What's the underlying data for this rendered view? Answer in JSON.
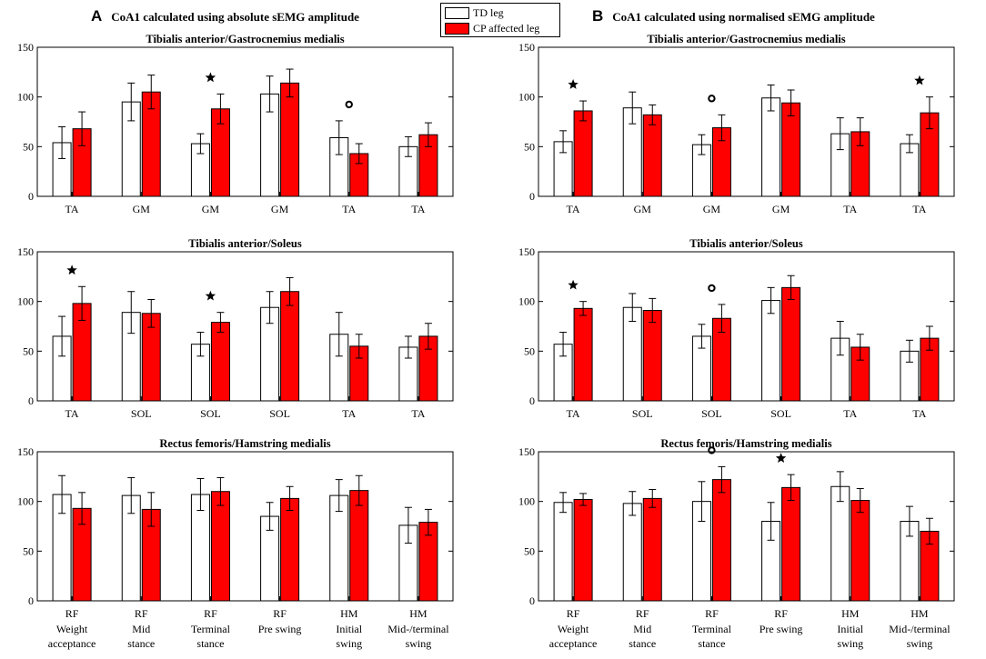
{
  "legend": {
    "td_label": "TD leg",
    "cp_label": "CP affected leg"
  },
  "colors": {
    "td_fill": "#ffffff",
    "cp_fill": "#ff0000",
    "stroke": "#000000"
  },
  "panels": [
    {
      "letter": "A",
      "title": "CoA1 calculated using absolute sEMG amplitude"
    },
    {
      "letter": "B",
      "title": "CoA1 calculated using normalised sEMG amplitude"
    }
  ],
  "phase_labels": [
    [
      "Weight",
      "acceptance"
    ],
    [
      "Mid",
      "stance"
    ],
    [
      "Terminal",
      "stance"
    ],
    [
      "Pre swing",
      ""
    ],
    [
      "Initial",
      "swing"
    ],
    [
      "Mid-/terminal",
      "swing"
    ]
  ],
  "chart_data": [
    {
      "panel": "A",
      "row": 0,
      "type": "bar",
      "title": "Tibialis anterior/Gastrocnemius medialis",
      "categories": [
        "TA",
        "GM",
        "GM",
        "GM",
        "TA",
        "TA"
      ],
      "ylim": [
        0,
        150
      ],
      "yticks": [
        0,
        50,
        100,
        150
      ],
      "series": [
        {
          "name": "TD leg",
          "values": [
            54,
            95,
            53,
            103,
            59,
            50
          ],
          "err": [
            16,
            19,
            10,
            18,
            17,
            10
          ]
        },
        {
          "name": "CP affected leg",
          "values": [
            68,
            105,
            88,
            114,
            43,
            62
          ],
          "err": [
            17,
            17,
            15,
            14,
            10,
            12
          ]
        }
      ],
      "markers": [
        {
          "index": 2,
          "symbol": "star"
        },
        {
          "index": 4,
          "symbol": "circle"
        }
      ]
    },
    {
      "panel": "A",
      "row": 1,
      "type": "bar",
      "title": "Tibialis anterior/Soleus",
      "categories": [
        "TA",
        "SOL",
        "SOL",
        "SOL",
        "TA",
        "TA"
      ],
      "ylim": [
        0,
        150
      ],
      "yticks": [
        0,
        50,
        100,
        150
      ],
      "series": [
        {
          "name": "TD leg",
          "values": [
            65,
            89,
            57,
            94,
            67,
            54
          ],
          "err": [
            20,
            21,
            12,
            16,
            22,
            11
          ]
        },
        {
          "name": "CP affected leg",
          "values": [
            98,
            88,
            79,
            110,
            55,
            65
          ],
          "err": [
            17,
            14,
            10,
            14,
            12,
            13
          ]
        }
      ],
      "markers": [
        {
          "index": 0,
          "symbol": "star"
        },
        {
          "index": 2,
          "symbol": "star"
        }
      ]
    },
    {
      "panel": "A",
      "row": 2,
      "type": "bar",
      "title": "Rectus femoris/Hamstring medialis",
      "categories": [
        "RF",
        "RF",
        "RF",
        "RF",
        "HM",
        "HM"
      ],
      "ylim": [
        0,
        150
      ],
      "yticks": [
        0,
        50,
        100,
        150
      ],
      "series": [
        {
          "name": "TD leg",
          "values": [
            107,
            106,
            107,
            85,
            106,
            76
          ],
          "err": [
            19,
            18,
            16,
            14,
            16,
            18
          ]
        },
        {
          "name": "CP affected leg",
          "values": [
            93,
            92,
            110,
            103,
            111,
            79
          ],
          "err": [
            16,
            17,
            14,
            12,
            15,
            13
          ]
        }
      ],
      "markers": []
    },
    {
      "panel": "B",
      "row": 0,
      "type": "bar",
      "title": "Tibialis anterior/Gastrocnemius medialis",
      "categories": [
        "TA",
        "GM",
        "GM",
        "GM",
        "TA",
        "TA"
      ],
      "ylim": [
        0,
        150
      ],
      "yticks": [
        0,
        50,
        100,
        150
      ],
      "series": [
        {
          "name": "TD leg",
          "values": [
            55,
            89,
            52,
            99,
            63,
            53
          ],
          "err": [
            11,
            16,
            10,
            13,
            16,
            9
          ]
        },
        {
          "name": "CP affected leg",
          "values": [
            86,
            82,
            69,
            94,
            65,
            84
          ],
          "err": [
            10,
            10,
            13,
            13,
            14,
            16
          ]
        }
      ],
      "markers": [
        {
          "index": 0,
          "symbol": "star"
        },
        {
          "index": 2,
          "symbol": "circle"
        },
        {
          "index": 5,
          "symbol": "star"
        }
      ]
    },
    {
      "panel": "B",
      "row": 1,
      "type": "bar",
      "title": "Tibialis anterior/Soleus",
      "categories": [
        "TA",
        "SOL",
        "SOL",
        "SOL",
        "TA",
        "TA"
      ],
      "ylim": [
        0,
        150
      ],
      "yticks": [
        0,
        50,
        100,
        150
      ],
      "series": [
        {
          "name": "TD leg",
          "values": [
            57,
            94,
            65,
            101,
            63,
            50
          ],
          "err": [
            12,
            14,
            12,
            13,
            17,
            11
          ]
        },
        {
          "name": "CP affected leg",
          "values": [
            93,
            91,
            83,
            114,
            54,
            63
          ],
          "err": [
            7,
            12,
            14,
            12,
            13,
            12
          ]
        }
      ],
      "markers": [
        {
          "index": 0,
          "symbol": "star"
        },
        {
          "index": 2,
          "symbol": "circle"
        }
      ]
    },
    {
      "panel": "B",
      "row": 2,
      "type": "bar",
      "title": "Rectus femoris/Hamstring medialis",
      "categories": [
        "RF",
        "RF",
        "RF",
        "RF",
        "HM",
        "HM"
      ],
      "ylim": [
        0,
        150
      ],
      "yticks": [
        0,
        50,
        100,
        150
      ],
      "series": [
        {
          "name": "TD leg",
          "values": [
            99,
            98,
            100,
            80,
            115,
            80
          ],
          "err": [
            10,
            12,
            20,
            19,
            15,
            15
          ]
        },
        {
          "name": "CP affected leg",
          "values": [
            102,
            103,
            122,
            114,
            101,
            70
          ],
          "err": [
            6,
            9,
            13,
            13,
            12,
            13
          ]
        }
      ],
      "markers": [
        {
          "index": 2,
          "symbol": "circle"
        },
        {
          "index": 3,
          "symbol": "star"
        }
      ]
    }
  ]
}
